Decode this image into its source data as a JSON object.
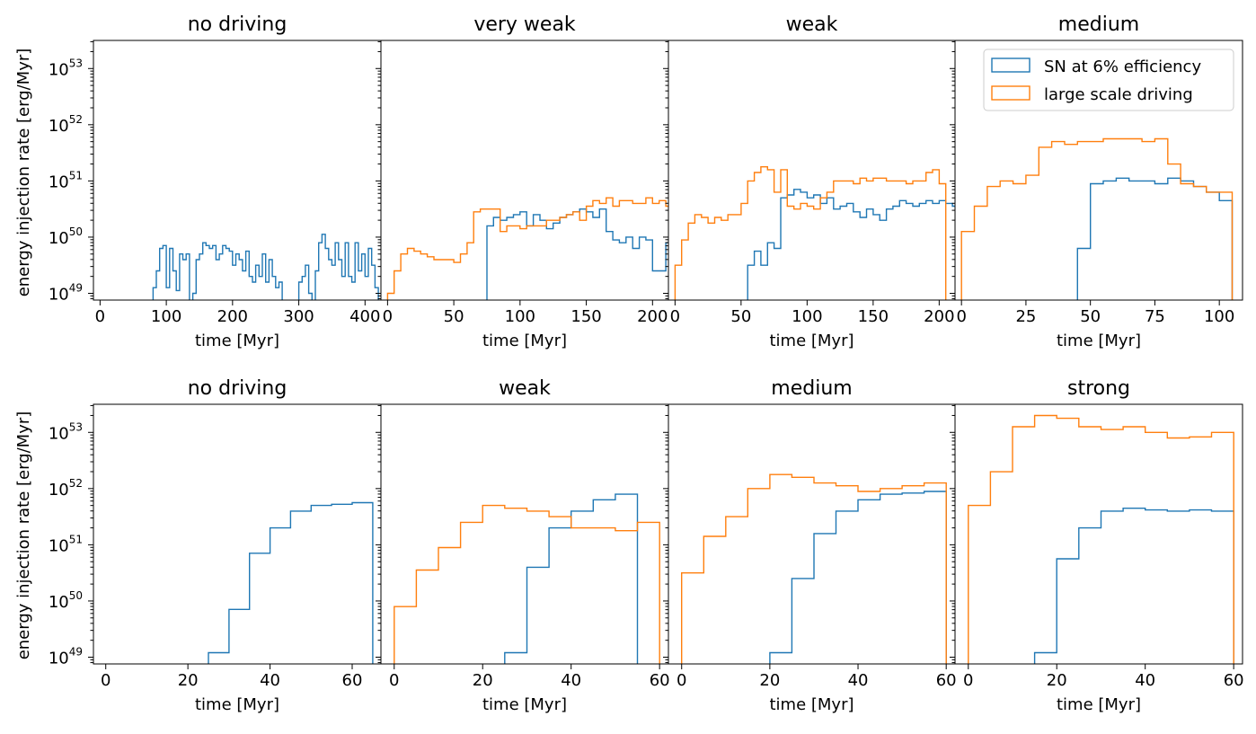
{
  "ylabel": "energy injection rate [erg/Myr]",
  "ylim_log10": [
    48.88,
    53.5
  ],
  "legend": {
    "location": "upper-right of top-right panel",
    "entries": [
      {
        "label": "SN at 6% efficiency",
        "color": "#1f77b4"
      },
      {
        "label": "large scale driving",
        "color": "#ff7f0e"
      }
    ]
  },
  "chart_data": [
    {
      "type": "step-histogram",
      "title": "no driving",
      "xlabel": "time [Myr]",
      "xlim": [
        -10,
        424
      ],
      "xticks": [
        0,
        100,
        200,
        300,
        400
      ],
      "yscale": "log",
      "series": [
        {
          "name": "SN at 6% efficiency",
          "color": "#1f77b4",
          "bin_width": 5,
          "start": 80,
          "values_log10": [
            49.1,
            49.4,
            49.8,
            49.85,
            49.1,
            49.8,
            49.4,
            49.05,
            49.7,
            49.6,
            49.7,
            48.8,
            49.0,
            49.6,
            49.7,
            49.9,
            49.85,
            49.8,
            49.85,
            49.6,
            49.7,
            49.85,
            49.8,
            49.75,
            49.5,
            49.7,
            49.6,
            49.4,
            49.75,
            49.3,
            49.2,
            49.5,
            49.3,
            49.7,
            49.2,
            49.6,
            49.3,
            49.1,
            49.2,
            48.8,
            48.8,
            48.8,
            48.8,
            48.8,
            49.2,
            49.3,
            49.5,
            49.0,
            48.8,
            49.4,
            49.9,
            50.05,
            49.8,
            49.6,
            49.5,
            49.9,
            49.6,
            49.3,
            49.9,
            49.3,
            49.2,
            49.9,
            49.4,
            49.7,
            49.3,
            49.8,
            49.5,
            49.1
          ]
        },
        {
          "name": "large scale driving",
          "color": "#ff7f0e",
          "values_log10": []
        }
      ]
    },
    {
      "type": "step-histogram",
      "title": "very weak",
      "xlabel": "time [Myr]",
      "xlim": [
        -5,
        212
      ],
      "xticks": [
        0,
        50,
        100,
        150,
        200
      ],
      "yscale": "log",
      "series": [
        {
          "name": "SN at 6% efficiency",
          "color": "#1f77b4",
          "bin_width": 5,
          "start": 75,
          "values_log10": [
            50.2,
            50.35,
            50.3,
            50.35,
            50.4,
            50.45,
            50.2,
            50.4,
            50.3,
            50.15,
            50.25,
            50.35,
            50.4,
            50.45,
            50.5,
            50.45,
            50.35,
            50.5,
            50.1,
            49.95,
            49.9,
            50.0,
            49.8,
            50.0,
            49.95,
            49.4,
            49.4,
            49.9,
            49.8,
            49.9,
            49.9,
            49.95,
            50.3,
            50.35,
            50.3,
            50.1
          ]
        },
        {
          "name": "large scale driving",
          "color": "#ff7f0e",
          "bin_width": 5,
          "start": 0,
          "values_log10": [
            49.0,
            49.4,
            49.7,
            49.8,
            49.75,
            49.7,
            49.65,
            49.6,
            49.6,
            49.6,
            49.55,
            49.7,
            49.9,
            50.45,
            50.5,
            50.5,
            50.5,
            50.1,
            50.2,
            50.2,
            50.15,
            50.2,
            50.2,
            50.2,
            50.3,
            50.3,
            50.35,
            50.4,
            50.45,
            50.3,
            50.55,
            50.65,
            50.6,
            50.7,
            50.55,
            50.65,
            50.65,
            50.6,
            50.6,
            50.7,
            50.6,
            50.65,
            50.55,
            50.6,
            50.6,
            50.3,
            48.8
          ]
        }
      ]
    },
    {
      "type": "step-histogram",
      "title": "weak",
      "xlabel": "time [Myr]",
      "xlim": [
        -5,
        212
      ],
      "xticks": [
        0,
        50,
        100,
        150,
        200
      ],
      "yscale": "log",
      "series": [
        {
          "name": "SN at 6% efficiency",
          "color": "#1f77b4",
          "bin_width": 5,
          "start": 55,
          "values_log10": [
            49.5,
            49.75,
            49.5,
            49.9,
            49.8,
            50.7,
            50.75,
            50.85,
            50.8,
            50.7,
            50.75,
            50.6,
            50.7,
            50.5,
            50.55,
            50.6,
            50.45,
            50.35,
            50.5,
            50.4,
            50.3,
            50.5,
            50.55,
            50.65,
            50.6,
            50.55,
            50.6,
            50.65,
            50.6,
            50.65,
            50.6,
            50.55,
            50.55,
            50.5,
            50.45,
            50.35,
            50.3,
            50.25
          ]
        },
        {
          "name": "large scale driving",
          "color": "#ff7f0e",
          "bin_width": 5,
          "start": 0,
          "values_log10": [
            49.5,
            49.95,
            50.25,
            50.4,
            50.35,
            50.25,
            50.35,
            50.3,
            50.4,
            50.4,
            50.6,
            51.0,
            51.15,
            51.25,
            51.2,
            50.8,
            51.2,
            50.55,
            50.5,
            50.6,
            50.55,
            50.5,
            50.7,
            50.8,
            51.0,
            51.0,
            51.0,
            50.95,
            51.05,
            51.0,
            51.05,
            51.05,
            51.0,
            51.0,
            51.0,
            50.95,
            51.0,
            51.0,
            51.15,
            51.2,
            50.95,
            48.8
          ]
        }
      ]
    },
    {
      "type": "step-histogram",
      "title": "medium",
      "xlabel": "time [Myr]",
      "xlim": [
        -2.5,
        109
      ],
      "xticks": [
        0,
        25,
        50,
        75,
        100
      ],
      "yscale": "log",
      "series": [
        {
          "name": "SN at 6% efficiency",
          "color": "#1f77b4",
          "bin_width": 5,
          "start": 45,
          "values_log10": [
            49.8,
            50.95,
            51.0,
            51.05,
            51.0,
            51.0,
            50.95,
            51.05,
            51.0,
            50.9,
            50.8,
            50.65
          ]
        },
        {
          "name": "large scale driving",
          "color": "#ff7f0e",
          "bin_width": 5,
          "start": 0,
          "values_log10": [
            50.1,
            50.55,
            50.9,
            51.0,
            50.95,
            51.1,
            51.6,
            51.7,
            51.65,
            51.7,
            51.7,
            51.75,
            51.75,
            51.75,
            51.7,
            51.75,
            51.3,
            50.95,
            50.9,
            50.8,
            50.8
          ]
        }
      ]
    },
    {
      "type": "step-histogram",
      "title": "no driving",
      "xlabel": "time [Myr]",
      "xlim": [
        -3,
        67
      ],
      "xticks": [
        0,
        20,
        40,
        60
      ],
      "yscale": "log",
      "series": [
        {
          "name": "SN at 6% efficiency",
          "color": "#1f77b4",
          "bin_width": 5,
          "start": 25,
          "values_log10": [
            49.08,
            49.85,
            50.85,
            51.3,
            51.6,
            51.7,
            51.72,
            51.75
          ]
        },
        {
          "name": "large scale driving",
          "color": "#ff7f0e",
          "values_log10": []
        }
      ]
    },
    {
      "type": "step-histogram",
      "title": "weak",
      "xlabel": "time [Myr]",
      "xlim": [
        -3,
        62
      ],
      "xticks": [
        0,
        20,
        40,
        60
      ],
      "yscale": "log",
      "series": [
        {
          "name": "SN at 6% efficiency",
          "color": "#1f77b4",
          "bin_width": 5,
          "start": 25,
          "values_log10": [
            49.08,
            50.6,
            51.3,
            51.6,
            51.8,
            51.9
          ]
        },
        {
          "name": "large scale driving",
          "color": "#ff7f0e",
          "bin_width": 5,
          "start": 0,
          "values_log10": [
            49.9,
            50.55,
            50.95,
            51.4,
            51.7,
            51.65,
            51.6,
            51.5,
            51.3,
            51.3,
            51.25,
            51.4
          ]
        }
      ]
    },
    {
      "type": "step-histogram",
      "title": "medium",
      "xlabel": "time [Myr]",
      "xlim": [
        -3,
        62
      ],
      "xticks": [
        0,
        20,
        40,
        60
      ],
      "yscale": "log",
      "series": [
        {
          "name": "SN at 6% efficiency",
          "color": "#1f77b4",
          "bin_width": 5,
          "start": 20,
          "values_log10": [
            49.08,
            50.4,
            51.2,
            51.6,
            51.8,
            51.9,
            51.92,
            51.95
          ]
        },
        {
          "name": "large scale driving",
          "color": "#ff7f0e",
          "bin_width": 5,
          "start": 0,
          "values_log10": [
            50.5,
            51.15,
            51.5,
            52.0,
            52.25,
            52.2,
            52.1,
            52.05,
            51.95,
            52.0,
            52.05,
            52.1
          ]
        }
      ]
    },
    {
      "type": "step-histogram",
      "title": "strong",
      "xlabel": "time [Myr]",
      "xlim": [
        -3,
        62
      ],
      "xticks": [
        0,
        20,
        40,
        60
      ],
      "yscale": "log",
      "series": [
        {
          "name": "SN at 6% efficiency",
          "color": "#1f77b4",
          "bin_width": 5,
          "start": 15,
          "values_log10": [
            49.08,
            50.75,
            51.3,
            51.6,
            51.65,
            51.62,
            51.6,
            51.62,
            51.6
          ]
        },
        {
          "name": "large scale driving",
          "color": "#ff7f0e",
          "bin_width": 5,
          "start": 0,
          "values_log10": [
            51.7,
            52.3,
            53.1,
            53.3,
            53.25,
            53.1,
            53.05,
            53.1,
            53.0,
            52.9,
            52.92,
            53.0
          ]
        }
      ]
    }
  ]
}
